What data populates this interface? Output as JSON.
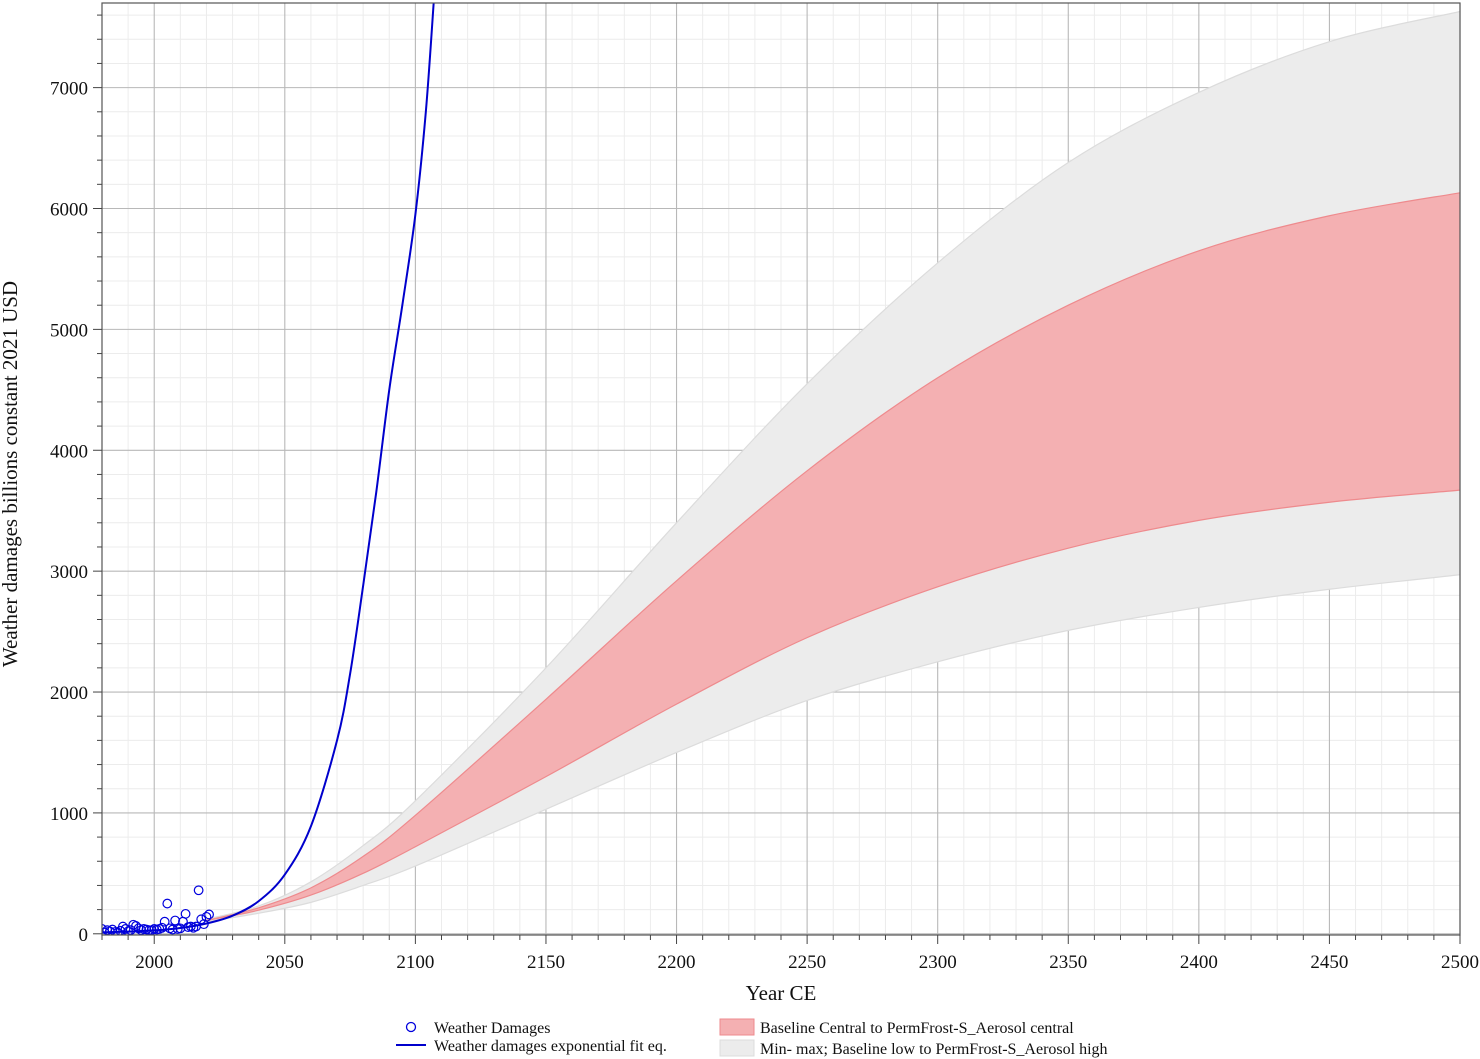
{
  "chart_data": {
    "type": "line",
    "title": "",
    "xlabel": "Year CE",
    "ylabel": "Weather damages billions constant 2021 USD",
    "xlim": [
      1980,
      2500
    ],
    "ylim": [
      -10,
      7700
    ],
    "grid": true,
    "legend_position": "bottom",
    "x_ticks": [
      2000,
      2050,
      2100,
      2150,
      2200,
      2250,
      2300,
      2350,
      2400,
      2450,
      2500
    ],
    "y_ticks": [
      0,
      1000,
      2000,
      3000,
      4000,
      5000,
      6000,
      7000
    ],
    "colors": {
      "observed": "#0000dd",
      "fit": "#0000cc",
      "central_band_fill": "#f4b0b2",
      "central_band_edge": "#ee8a8d",
      "minmax_band_fill": "#ececec",
      "minmax_band_edge": "#dcdcdc"
    },
    "series": [
      {
        "name": "Weather Damages",
        "type": "scatter",
        "x": [
          1980,
          1981,
          1982,
          1983,
          1984,
          1985,
          1986,
          1987,
          1988,
          1989,
          1990,
          1991,
          1992,
          1993,
          1994,
          1995,
          1996,
          1997,
          1998,
          1999,
          2000,
          2001,
          2002,
          2003,
          2004,
          2005,
          2006,
          2007,
          2008,
          2009,
          2010,
          2011,
          2012,
          2013,
          2014,
          2015,
          2016,
          2017,
          2018,
          2019,
          2020,
          2021
        ],
        "y": [
          40,
          10,
          30,
          20,
          35,
          15,
          10,
          25,
          60,
          40,
          20,
          30,
          75,
          65,
          45,
          30,
          40,
          35,
          30,
          30,
          40,
          35,
          40,
          50,
          100,
          250,
          45,
          35,
          110,
          40,
          45,
          100,
          165,
          55,
          60,
          50,
          60,
          360,
          120,
          80,
          140,
          160
        ]
      },
      {
        "name": "Weather damages exponential fit eq.",
        "type": "line",
        "x": [
          1980,
          1990,
          2000,
          2010,
          2020,
          2030,
          2040,
          2050,
          2060,
          2070,
          2075,
          2080,
          2085,
          2090,
          2095,
          2100,
          2104,
          2107
        ],
        "y": [
          12,
          18,
          28,
          48,
          85,
          150,
          270,
          490,
          890,
          1600,
          2150,
          2880,
          3650,
          4500,
          5200,
          5950,
          6800,
          7700
        ]
      },
      {
        "name": "Baseline Central to PermFrost-S_Aerosol central",
        "type": "area",
        "x": [
          2020,
          2040,
          2060,
          2080,
          2100,
          2150,
          2200,
          2250,
          2300,
          2350,
          2400,
          2450,
          2500
        ],
        "y_low": [
          110,
          195,
          320,
          500,
          720,
          1300,
          1900,
          2450,
          2870,
          3190,
          3420,
          3570,
          3670
        ],
        "y_high": [
          110,
          215,
          380,
          640,
          980,
          1940,
          2920,
          3830,
          4600,
          5200,
          5650,
          5940,
          6130
        ]
      },
      {
        "name": "Min- max; Baseline low to PermFrost-S_Aerosol high",
        "type": "area",
        "x": [
          2020,
          2040,
          2060,
          2080,
          2100,
          2150,
          2200,
          2250,
          2300,
          2350,
          2400,
          2450,
          2500
        ],
        "y_low": [
          100,
          170,
          260,
          400,
          560,
          1030,
          1500,
          1930,
          2250,
          2510,
          2700,
          2850,
          2970
        ],
        "y_high": [
          120,
          230,
          430,
          730,
          1100,
          2200,
          3400,
          4550,
          5550,
          6380,
          6960,
          7380,
          7630
        ]
      }
    ]
  }
}
